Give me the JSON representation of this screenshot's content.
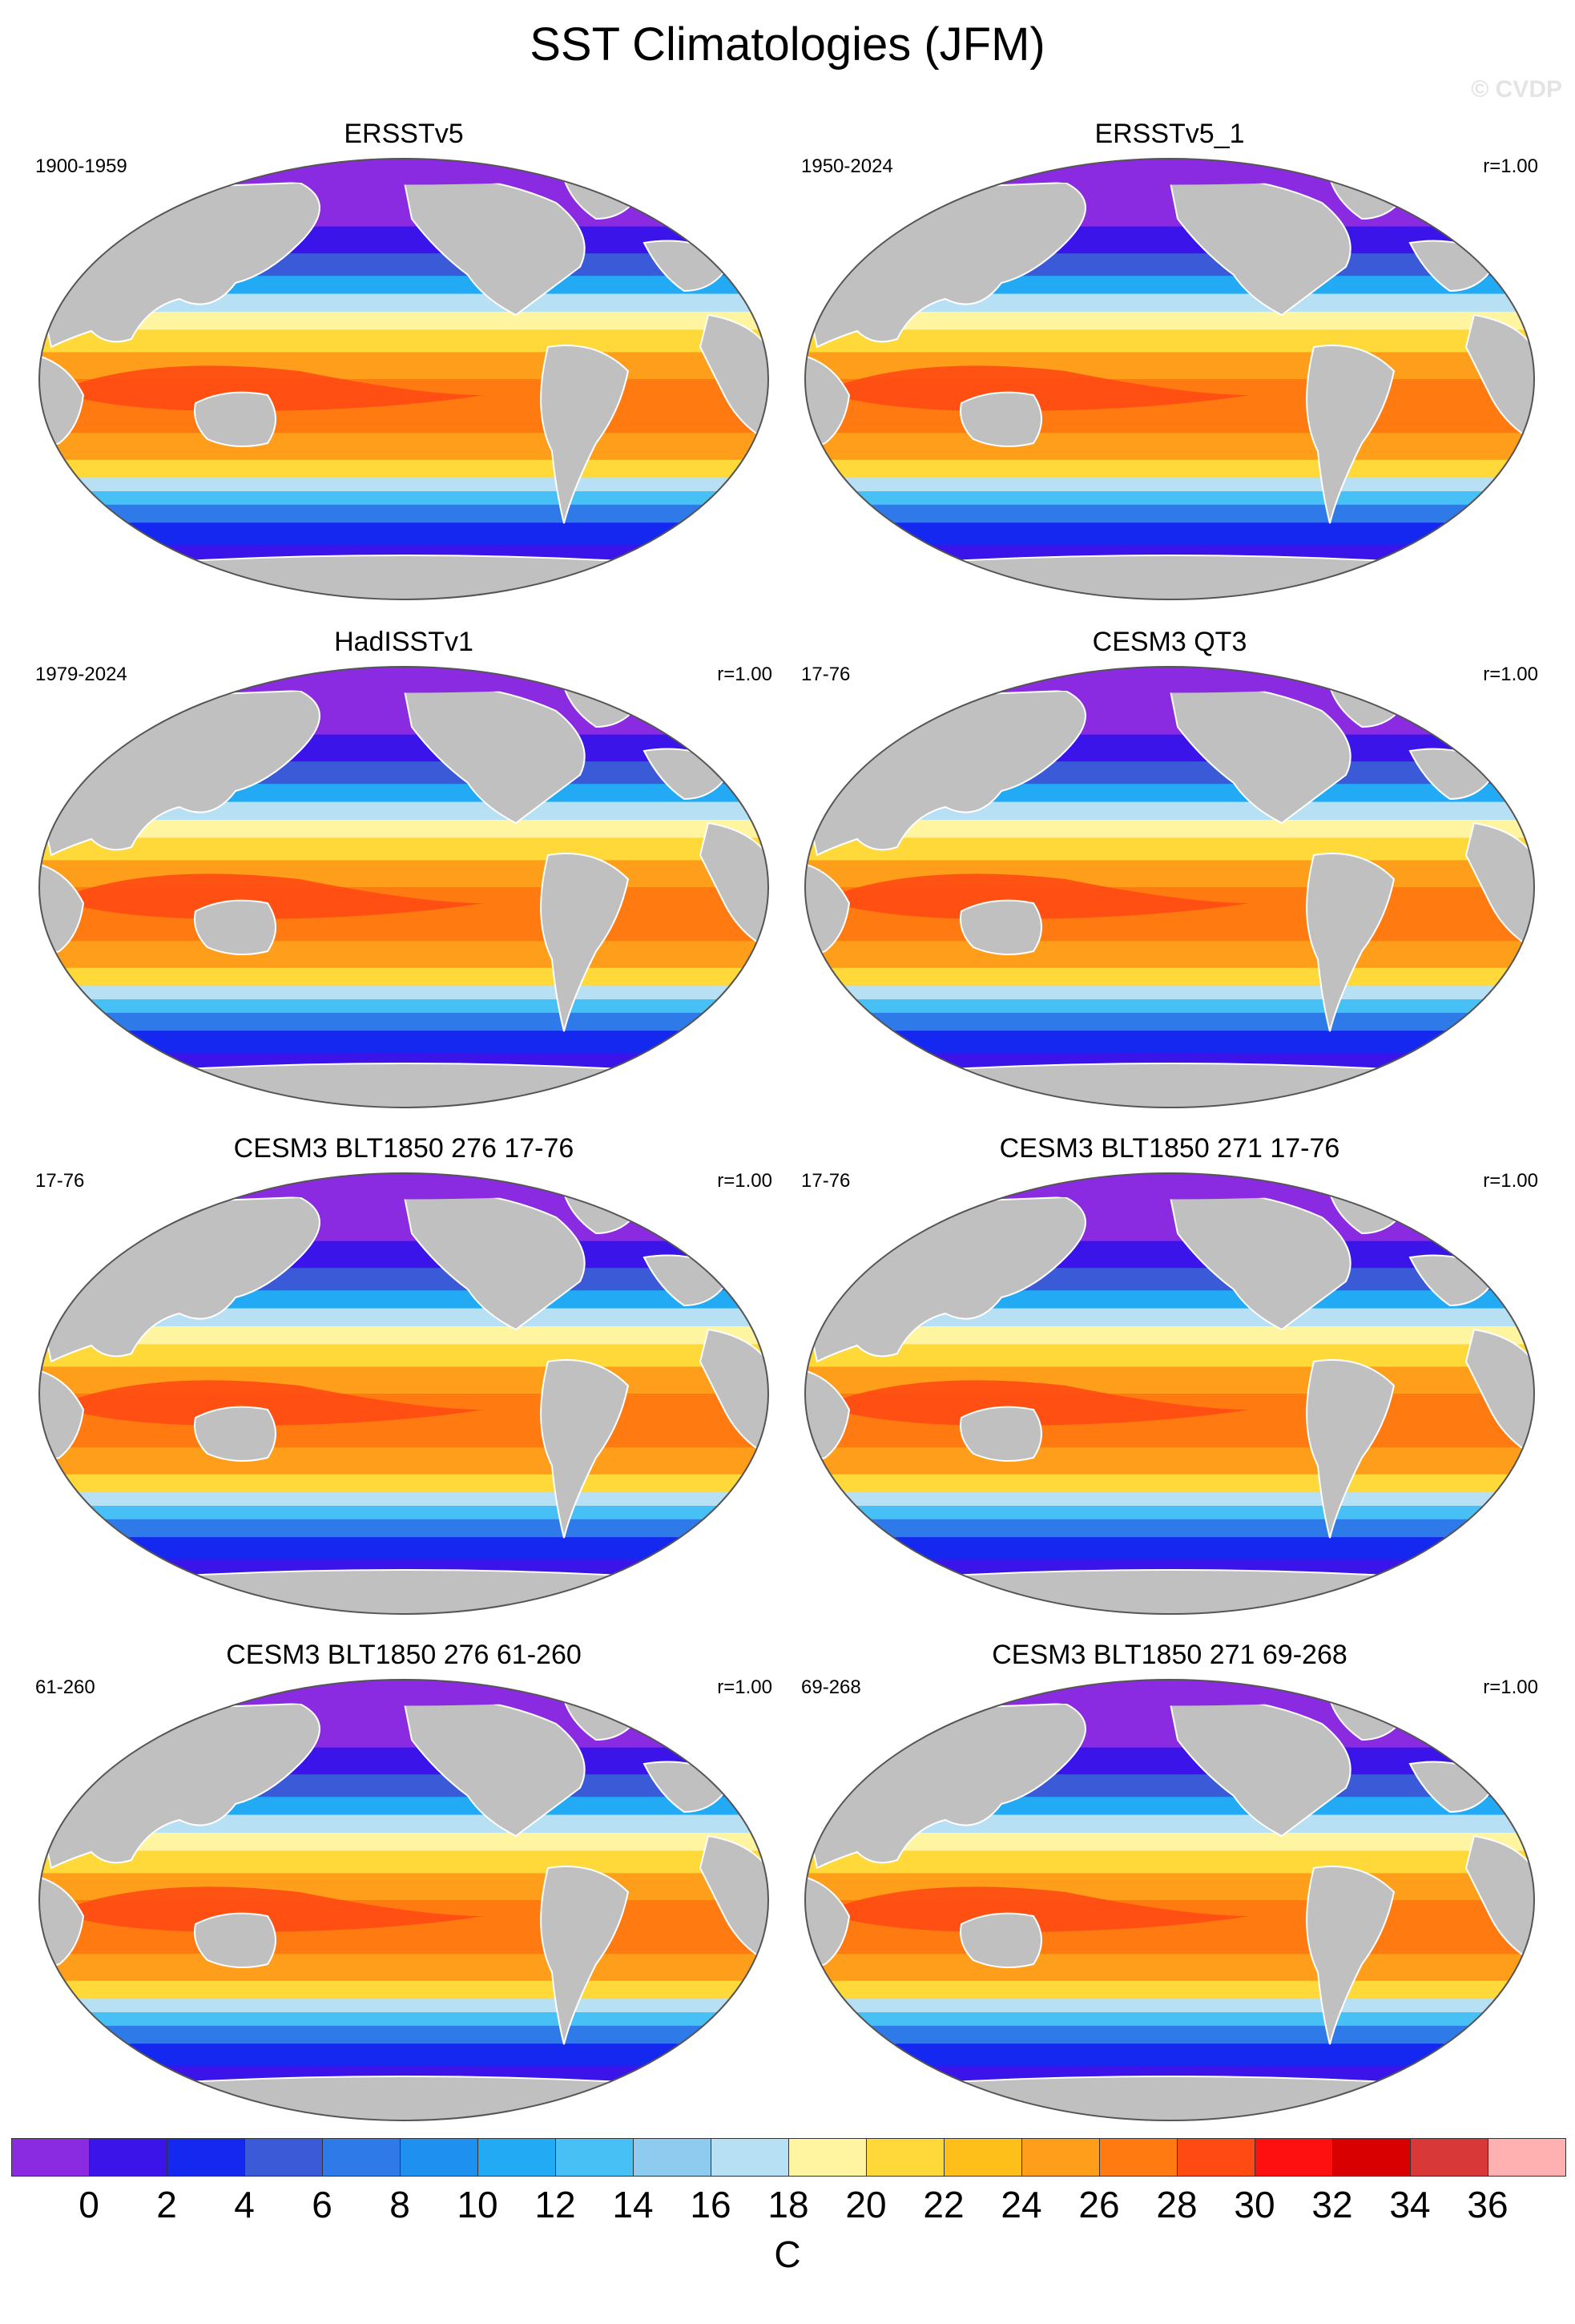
{
  "title": "SST Climatologies (JFM)",
  "watermark": "© CVDP",
  "panels": [
    {
      "title": "ERSSTv5",
      "years": "1900-1959",
      "corr": ""
    },
    {
      "title": "ERSSTv5_1",
      "years": "1950-2024",
      "corr": "r=1.00"
    },
    {
      "title": "HadISSTv1",
      "years": "1979-2024",
      "corr": "r=1.00"
    },
    {
      "title": "CESM3 QT3",
      "years": "17-76",
      "corr": "r=1.00"
    },
    {
      "title": "CESM3 BLT1850 276 17-76",
      "years": "17-76",
      "corr": "r=1.00"
    },
    {
      "title": "CESM3 BLT1850 271 17-76",
      "years": "17-76",
      "corr": "r=1.00"
    },
    {
      "title": "CESM3 BLT1850 276 61-260",
      "years": "61-260",
      "corr": "r=1.00"
    },
    {
      "title": "CESM3 BLT1850 271 69-268",
      "years": "69-268",
      "corr": "r=1.00"
    }
  ],
  "colorbar": {
    "colors": [
      "#8a2be2",
      "#3a14e8",
      "#1428f0",
      "#3a5ad8",
      "#2e7ae8",
      "#1e90f0",
      "#22aaf5",
      "#46c0f5",
      "#8ecbee",
      "#b8e0f4",
      "#fff5a0",
      "#ffd83a",
      "#ffbf1a",
      "#ff9e1a",
      "#ff7a10",
      "#ff4a14",
      "#ff1010",
      "#d80000",
      "#d83838",
      "#ffb0b0"
    ],
    "labels": [
      "0",
      "2",
      "4",
      "6",
      "8",
      "10",
      "12",
      "14",
      "16",
      "18",
      "20",
      "22",
      "24",
      "26",
      "28",
      "30",
      "32",
      "34",
      "36"
    ],
    "units": "C"
  },
  "colors": {
    "land": "#c0c0c0",
    "ice": "#ffffff",
    "outline": "#555555"
  }
}
